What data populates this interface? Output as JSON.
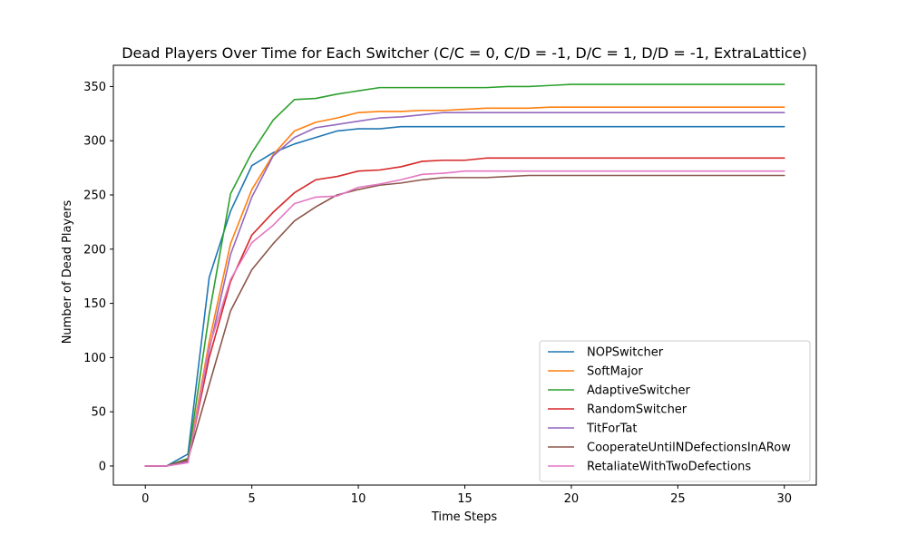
{
  "chart_data": {
    "type": "line",
    "title": "Dead Players Over Time for Each Switcher (C/C = 0, C/D = -1, D/C = 1, D/D = -1, ExtraLattice)",
    "xlabel": "Time Steps",
    "ylabel": "Number of Dead Players",
    "xlim": [
      -1.5,
      31.5
    ],
    "ylim": [
      -17.6,
      369.6
    ],
    "xticks": [
      0,
      5,
      10,
      15,
      20,
      25,
      30
    ],
    "yticks": [
      0,
      50,
      100,
      150,
      200,
      250,
      300,
      350
    ],
    "grid": false,
    "legend_position": "bottom-right",
    "x": [
      0,
      1,
      2,
      3,
      4,
      5,
      6,
      7,
      8,
      9,
      10,
      11,
      12,
      13,
      14,
      15,
      16,
      17,
      18,
      19,
      20,
      21,
      22,
      23,
      24,
      25,
      26,
      27,
      28,
      29,
      30
    ],
    "series": [
      {
        "name": "NOPSwitcher",
        "color": "#1f77b4",
        "values": [
          0,
          0,
          11,
          174,
          235,
          277,
          289,
          297,
          303,
          309,
          311,
          311,
          313,
          313,
          313,
          313,
          313,
          313,
          313,
          313,
          313,
          313,
          313,
          313,
          313,
          313,
          313,
          313,
          313,
          313,
          313
        ]
      },
      {
        "name": "SoftMajor",
        "color": "#ff7f0e",
        "values": [
          0,
          0,
          5,
          115,
          205,
          255,
          287,
          309,
          317,
          321,
          326,
          327,
          327,
          328,
          328,
          329,
          330,
          330,
          330,
          331,
          331,
          331,
          331,
          331,
          331,
          331,
          331,
          331,
          331,
          331,
          331
        ]
      },
      {
        "name": "AdaptiveSwitcher",
        "color": "#2ca02c",
        "values": [
          0,
          0,
          7,
          140,
          251,
          289,
          319,
          338,
          339,
          343,
          346,
          349,
          349,
          349,
          349,
          349,
          349,
          350,
          350,
          351,
          352,
          352,
          352,
          352,
          352,
          352,
          352,
          352,
          352,
          352,
          352
        ]
      },
      {
        "name": "RandomSwitcher",
        "color": "#d62728",
        "values": [
          0,
          0,
          5,
          100,
          170,
          213,
          234,
          252,
          264,
          267,
          272,
          273,
          276,
          281,
          282,
          282,
          284,
          284,
          284,
          284,
          284,
          284,
          284,
          284,
          284,
          284,
          284,
          284,
          284,
          284,
          284
        ]
      },
      {
        "name": "TitForTat",
        "color": "#9467bd",
        "values": [
          0,
          0,
          4,
          107,
          195,
          248,
          286,
          303,
          312,
          315,
          318,
          321,
          322,
          324,
          326,
          326,
          326,
          326,
          326,
          326,
          326,
          326,
          326,
          326,
          326,
          326,
          326,
          326,
          326,
          326,
          326
        ]
      },
      {
        "name": "CooperateUntilNDefectionsInARow",
        "color": "#8c564b",
        "values": [
          0,
          0,
          6,
          75,
          143,
          181,
          205,
          226,
          239,
          250,
          255,
          259,
          261,
          264,
          266,
          266,
          266,
          267,
          268,
          268,
          268,
          268,
          268,
          268,
          268,
          268,
          268,
          268,
          268,
          268,
          268
        ]
      },
      {
        "name": "RetaliateWithTwoDefections",
        "color": "#e377c2",
        "values": [
          0,
          0,
          3,
          110,
          172,
          206,
          222,
          242,
          248,
          249,
          257,
          260,
          264,
          269,
          270,
          272,
          272,
          272,
          272,
          272,
          272,
          272,
          272,
          272,
          272,
          272,
          272,
          272,
          272,
          272,
          272
        ]
      }
    ]
  }
}
